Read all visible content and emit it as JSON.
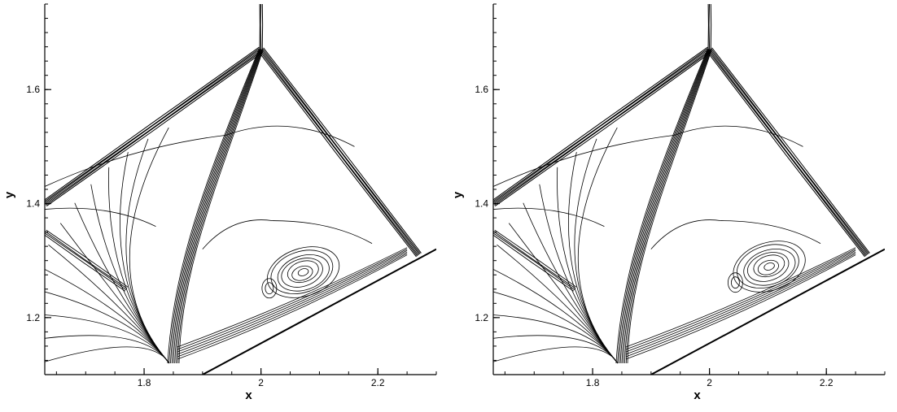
{
  "chart_data": [
    {
      "type": "contour",
      "title": "",
      "xlabel": "x",
      "ylabel": "y",
      "xlim": [
        1.63,
        2.3
      ],
      "ylim": [
        1.1,
        1.75
      ],
      "xticks": [
        "1.8",
        "2",
        "2.2"
      ],
      "yticks": [
        "1.2",
        "1.4",
        "1.6"
      ],
      "grid": false,
      "features": {
        "wedge_wall": [
          [
            1.9,
            1.1
          ],
          [
            2.3,
            1.32
          ]
        ],
        "mach_stem_top": [
          2.0,
          1.67
        ],
        "incident_shock": [
          [
            1.63,
            1.4
          ],
          [
            2.0,
            1.67
          ]
        ],
        "reflected_shock": [
          [
            2.0,
            1.67
          ],
          [
            2.27,
            1.31
          ]
        ],
        "slip_line": [
          [
            2.0,
            1.67
          ],
          [
            1.85,
            1.12
          ]
        ],
        "vortex_center": [
          2.07,
          1.28
        ]
      }
    },
    {
      "type": "contour",
      "title": "",
      "xlabel": "x",
      "ylabel": "y",
      "xlim": [
        1.63,
        2.3
      ],
      "ylim": [
        1.1,
        1.75
      ],
      "xticks": [
        "1.8",
        "2",
        "2.2"
      ],
      "yticks": [
        "1.2",
        "1.4",
        "1.6"
      ],
      "grid": false,
      "features": {
        "wedge_wall": [
          [
            1.9,
            1.1
          ],
          [
            2.3,
            1.32
          ]
        ],
        "mach_stem_top": [
          2.0,
          1.67
        ],
        "incident_shock": [
          [
            1.63,
            1.4
          ],
          [
            2.0,
            1.67
          ]
        ],
        "reflected_shock": [
          [
            2.0,
            1.67
          ],
          [
            2.27,
            1.31
          ]
        ],
        "slip_line": [
          [
            2.0,
            1.67
          ],
          [
            1.85,
            1.12
          ]
        ],
        "vortex_center": [
          2.1,
          1.29
        ]
      }
    }
  ]
}
